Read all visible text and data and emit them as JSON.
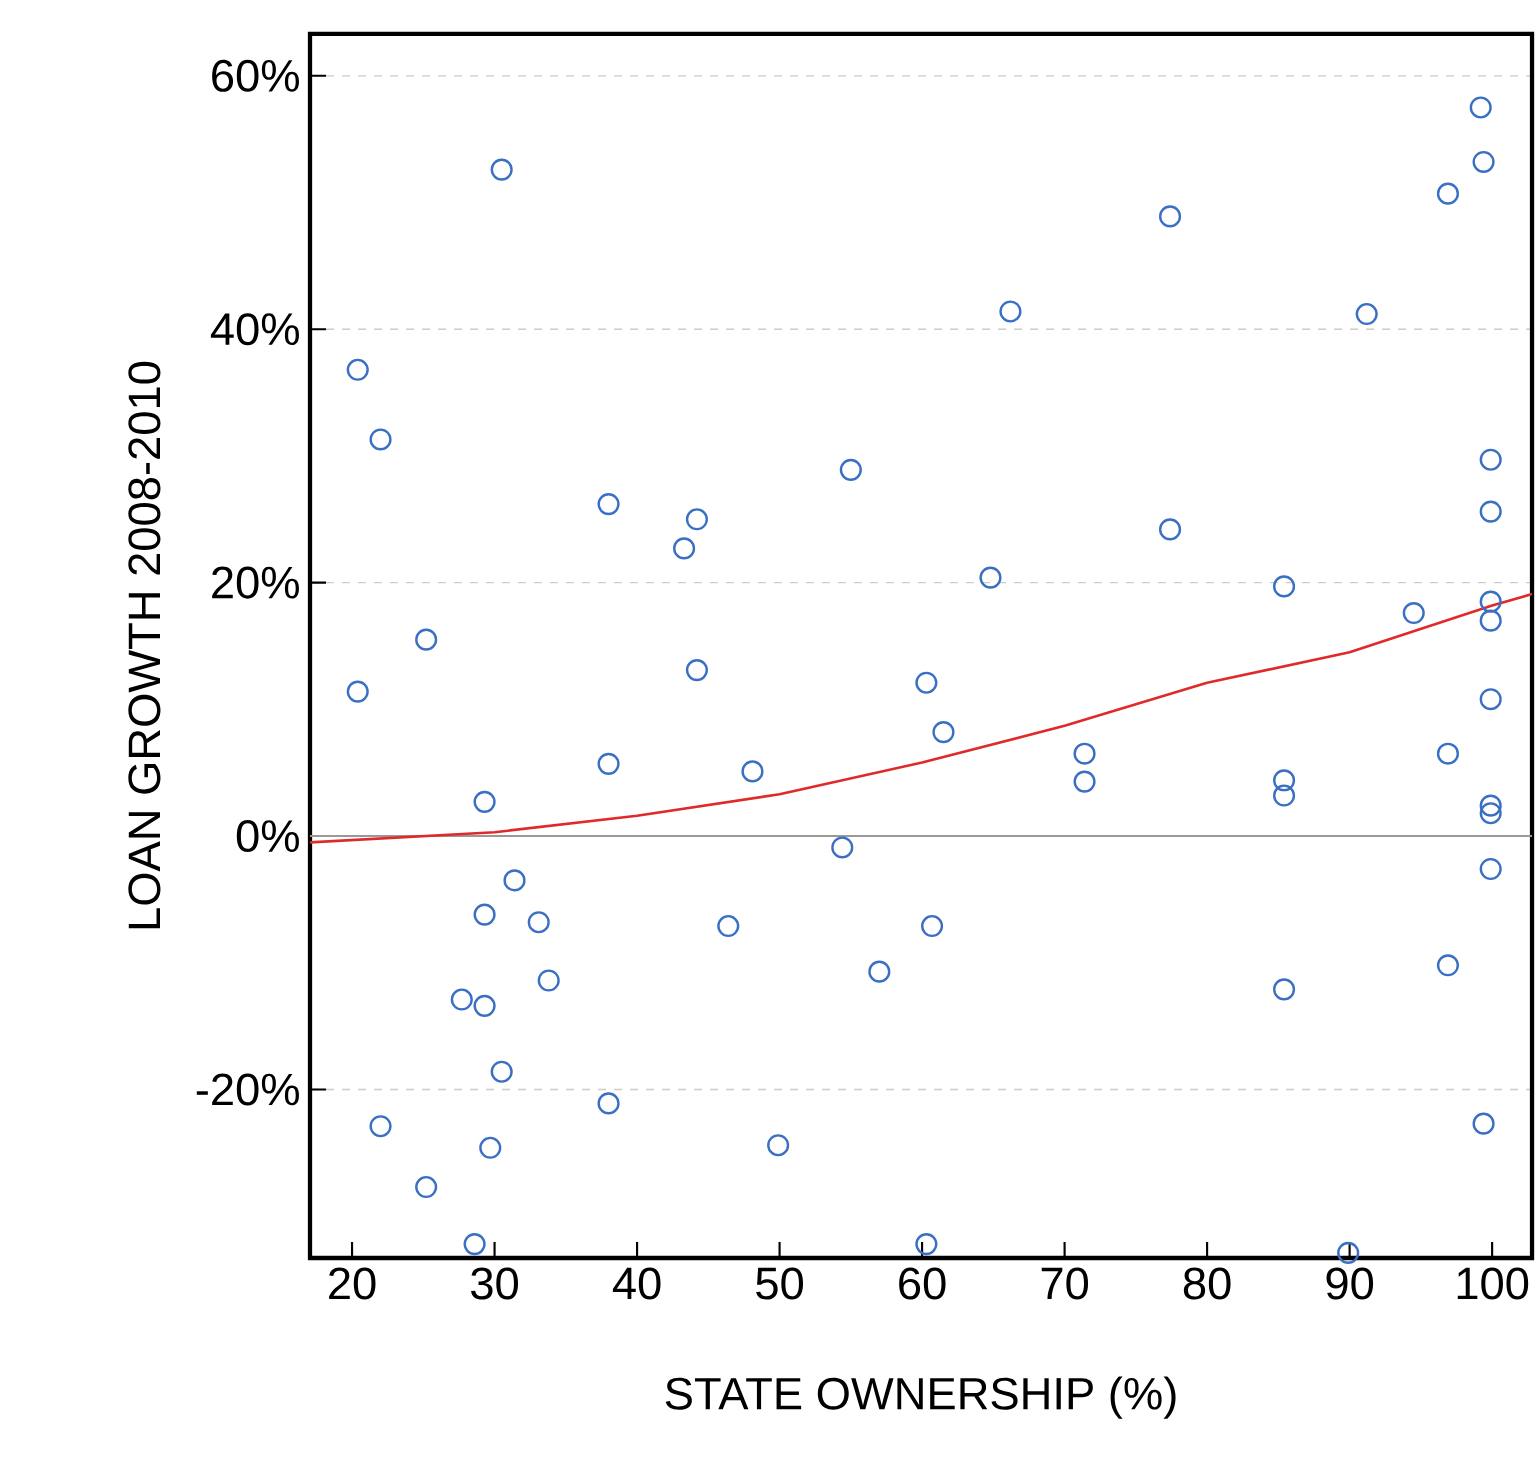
{
  "chart_data": {
    "type": "scatter",
    "xlabel": "STATE OWNERSHIP (%)",
    "ylabel": "LOAN GROWTH 2008-2010",
    "xlim": [
      17.05,
      102.8
    ],
    "ylim": [
      -33.3,
      63.3
    ],
    "xticks": [
      20,
      30,
      40,
      50,
      60,
      70,
      80,
      90,
      100
    ],
    "yticks": [
      {
        "value": -20,
        "label": "-20%"
      },
      {
        "value": 0,
        "label": "0%"
      },
      {
        "value": 20,
        "label": "20%"
      },
      {
        "value": 40,
        "label": "40%"
      },
      {
        "value": 60,
        "label": "60%"
      }
    ],
    "grid": "y",
    "ref_lines": [
      {
        "axis": "y",
        "value": 0,
        "color": "#999999"
      }
    ],
    "series": [
      {
        "color": "#3a6fc4",
        "marker": "circle",
        "x": [
          20.4,
          22,
          30.5,
          25.2,
          20.4,
          38,
          44.2,
          43.3,
          55,
          44.2,
          66.2,
          77.4,
          77.4,
          64.8,
          85.4,
          60.3,
          61.5,
          38,
          48.1,
          29.3,
          71.4,
          71.4,
          85.4,
          85.4,
          91.2,
          99.2,
          99.4,
          96.9,
          99.9,
          99.9,
          99.9,
          94.5,
          99.9,
          99.9,
          96.9,
          99.9,
          99.9,
          99.9,
          54.4,
          31.4,
          29.3,
          33.1,
          46.4,
          60.7,
          57,
          33.8,
          27.7,
          29.3,
          30.5,
          85.4,
          96.9,
          38,
          22,
          99.4,
          29.7,
          49.9,
          25.2,
          28.6,
          60.3,
          89.9
        ],
        "values": [
          36.8,
          31.3,
          52.6,
          15.5,
          11.4,
          26.2,
          25.0,
          22.7,
          28.9,
          13.1,
          41.4,
          48.9,
          24.2,
          20.4,
          19.7,
          12.1,
          8.2,
          5.7,
          5.1,
          2.7,
          6.5,
          4.3,
          4.4,
          3.2,
          41.2,
          57.5,
          53.2,
          50.7,
          29.7,
          25.6,
          18.5,
          17.6,
          17.0,
          10.8,
          6.5,
          2.4,
          1.8,
          -2.6,
          -0.9,
          -3.5,
          -6.2,
          -6.8,
          -7.1,
          -7.1,
          -10.7,
          -11.4,
          -12.9,
          -13.4,
          -18.6,
          -12.1,
          -10.2,
          -21.1,
          -22.9,
          -22.7,
          -24.6,
          -24.4,
          -27.7,
          -32.2,
          -32.2,
          -32.9
        ]
      },
      {
        "type": "line",
        "color": "#e02a2a",
        "marker": "none",
        "line_style": "solid",
        "x": [
          17.05,
          30,
          40,
          50,
          60,
          70,
          80,
          90,
          100,
          102.8
        ],
        "values": [
          -0.5,
          0.3,
          1.6,
          3.3,
          5.8,
          8.7,
          12.1,
          14.5,
          18.2,
          19.1
        ]
      }
    ]
  }
}
